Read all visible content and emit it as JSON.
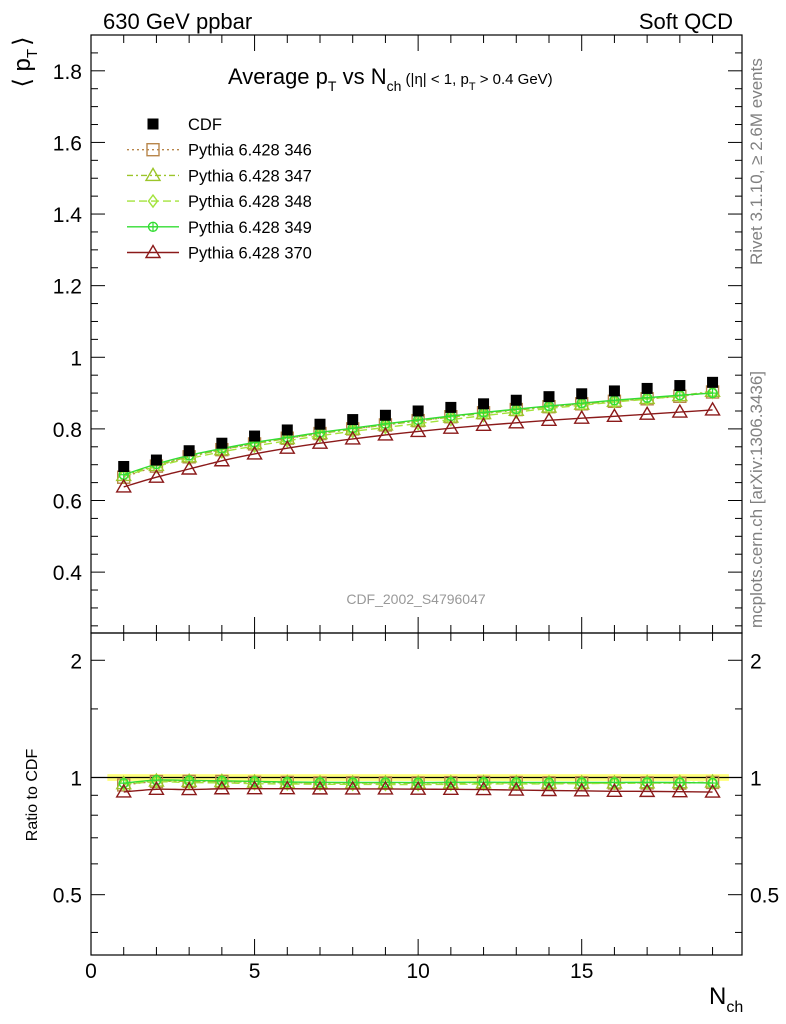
{
  "header": {
    "left": "630 GeV ppbar",
    "right": "Soft QCD"
  },
  "side_labels": {
    "version": "Rivet 3.1.10, ≥ 2.6M events",
    "source": "mcplots.cern.ch [arXiv:1306.3436]"
  },
  "colors": {
    "CDF": "#000000",
    "346": "#b8864b",
    "347": "#9cc52a",
    "348": "#a3e33c",
    "349": "#33dd33",
    "370": "#8b1a1a",
    "watermark": "#999999",
    "side": "#808080"
  },
  "chart_data": [
    {
      "type": "scatter",
      "title": {
        "main": "Average p",
        "sub1": "T",
        "mid": " vs N",
        "sub2": "ch",
        "tail1": " (|η| < 1, p",
        "sub3": "T",
        "tail2": " > 0.4 GeV)"
      },
      "ylabel": {
        "main": "⟨ p",
        "sub": "T",
        "end": "⟩"
      },
      "watermark": "CDF_2002_S4796047",
      "xlim": [
        0,
        19.9
      ],
      "ylim": [
        0.23,
        1.9
      ],
      "yticks": [
        0.4,
        0.6,
        0.8,
        1,
        1.2,
        1.4,
        1.6,
        1.8
      ],
      "ytick_labels": [
        "0.4",
        "0.6",
        "0.8",
        "1",
        "1.2",
        "1.4",
        "1.6",
        "1.8"
      ],
      "legend_position": "top-left",
      "x": [
        1,
        2,
        3,
        4,
        5,
        6,
        7,
        8,
        9,
        10,
        11,
        12,
        13,
        14,
        15,
        16,
        17,
        18,
        19
      ],
      "series": [
        {
          "name": "CDF",
          "key": "CDF",
          "marker": "square-filled",
          "values": [
            0.695,
            0.713,
            0.739,
            0.76,
            0.78,
            0.797,
            0.813,
            0.826,
            0.838,
            0.85,
            0.86,
            0.87,
            0.88,
            0.89,
            0.898,
            0.906,
            0.913,
            0.921,
            0.93
          ]
        },
        {
          "name": "Pythia 6.428 346",
          "key": "346",
          "marker": "square",
          "dash": "2,3",
          "values": [
            0.665,
            0.696,
            0.722,
            0.742,
            0.758,
            0.774,
            0.787,
            0.8,
            0.811,
            0.823,
            0.834,
            0.845,
            0.854,
            0.862,
            0.87,
            0.877,
            0.884,
            0.891,
            0.903
          ]
        },
        {
          "name": "Pythia 6.428 347",
          "key": "347",
          "marker": "triangle",
          "dash": "6,3,2,3",
          "values": [
            0.67,
            0.698,
            0.722,
            0.742,
            0.759,
            0.773,
            0.787,
            0.799,
            0.811,
            0.822,
            0.833,
            0.843,
            0.852,
            0.861,
            0.869,
            0.877,
            0.885,
            0.893,
            0.905
          ]
        },
        {
          "name": "Pythia 6.428 348",
          "key": "348",
          "marker": "diamond",
          "dash": "8,4",
          "values": [
            0.668,
            0.695,
            0.717,
            0.736,
            0.752,
            0.767,
            0.781,
            0.793,
            0.804,
            0.815,
            0.826,
            0.837,
            0.847,
            0.857,
            0.866,
            0.875,
            0.883,
            0.892,
            0.902
          ]
        },
        {
          "name": "Pythia 6.428 349",
          "key": "349",
          "marker": "circle-cross",
          "dash": "",
          "values": [
            0.672,
            0.702,
            0.726,
            0.745,
            0.762,
            0.776,
            0.79,
            0.802,
            0.814,
            0.825,
            0.836,
            0.846,
            0.855,
            0.864,
            0.872,
            0.88,
            0.887,
            0.894,
            0.9
          ]
        },
        {
          "name": "Pythia 6.428 370",
          "key": "370",
          "marker": "triangle",
          "dash": "",
          "values": [
            0.638,
            0.665,
            0.688,
            0.711,
            0.73,
            0.746,
            0.76,
            0.772,
            0.783,
            0.793,
            0.802,
            0.81,
            0.817,
            0.824,
            0.83,
            0.835,
            0.841,
            0.847,
            0.853
          ]
        }
      ]
    },
    {
      "type": "line",
      "ylabel": "Ratio to CDF",
      "xlabel": {
        "main": "N",
        "sub": "ch"
      },
      "xlim": [
        0,
        19.9
      ],
      "ylim": [
        0.35,
        2.35
      ],
      "yscale": "log",
      "yticks": [
        0.5,
        1,
        2
      ],
      "ytick_labels": [
        "0.5",
        "1",
        "2"
      ],
      "xticks": [
        0,
        5,
        10,
        15
      ],
      "xtick_labels": [
        "0",
        "5",
        "10",
        "15"
      ],
      "reference_line": 1,
      "band": [
        0.98,
        1.02
      ]
    }
  ]
}
